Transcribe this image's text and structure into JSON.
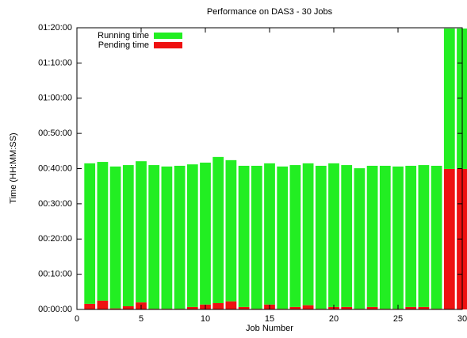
{
  "chart_data": {
    "type": "bar",
    "stacked": true,
    "title": "Performance on DAS3 - 30 Jobs",
    "xlabel": "Job Number",
    "ylabel": "Time (HH:MM:SS)",
    "x": [
      1,
      2,
      3,
      4,
      5,
      6,
      7,
      8,
      9,
      10,
      11,
      12,
      13,
      14,
      15,
      16,
      17,
      18,
      19,
      20,
      21,
      22,
      23,
      24,
      25,
      26,
      27,
      28,
      29,
      30
    ],
    "series": [
      {
        "name": "Running time",
        "color": "#22ee22",
        "values": [
          39.9,
          39.4,
          40.3,
          40.1,
          40.1,
          40.8,
          40.4,
          40.6,
          40.5,
          40.3,
          41.5,
          40.1,
          40.1,
          40.6,
          40.1,
          40.4,
          40.3,
          40.3,
          40.6,
          40.8,
          40.3,
          39.9,
          40.1,
          40.6,
          40.4,
          40.1,
          40.3,
          40.6,
          39.9,
          39.9
        ]
      },
      {
        "name": "Pending time",
        "color": "#ee1111",
        "values": [
          1.6,
          2.5,
          0.3,
          0.9,
          2.0,
          0.2,
          0.2,
          0.2,
          0.7,
          1.4,
          1.8,
          2.3,
          0.7,
          0.2,
          1.4,
          0.2,
          0.7,
          1.2,
          0.2,
          0.7,
          0.7,
          0.2,
          0.7,
          0.2,
          0.2,
          0.7,
          0.7,
          0.2,
          39.9,
          39.9
        ]
      }
    ],
    "stack_order": [
      "Pending time",
      "Running time"
    ],
    "xlim": [
      0,
      30
    ],
    "xticks": [
      0,
      5,
      10,
      15,
      20,
      25,
      30
    ],
    "ylim": [
      0,
      80
    ],
    "yticks": [
      {
        "value": 0,
        "label": "00:00:00"
      },
      {
        "value": 10,
        "label": "00:10:00"
      },
      {
        "value": 20,
        "label": "00:20:00"
      },
      {
        "value": 30,
        "label": "00:30:00"
      },
      {
        "value": 40,
        "label": "00:40:00"
      },
      {
        "value": 50,
        "label": "00:50:00"
      },
      {
        "value": 60,
        "label": "01:00:00"
      },
      {
        "value": 70,
        "label": "01:10:00"
      },
      {
        "value": 80,
        "label": "01:20:00"
      }
    ],
    "legend": "upper left",
    "grid": false
  }
}
